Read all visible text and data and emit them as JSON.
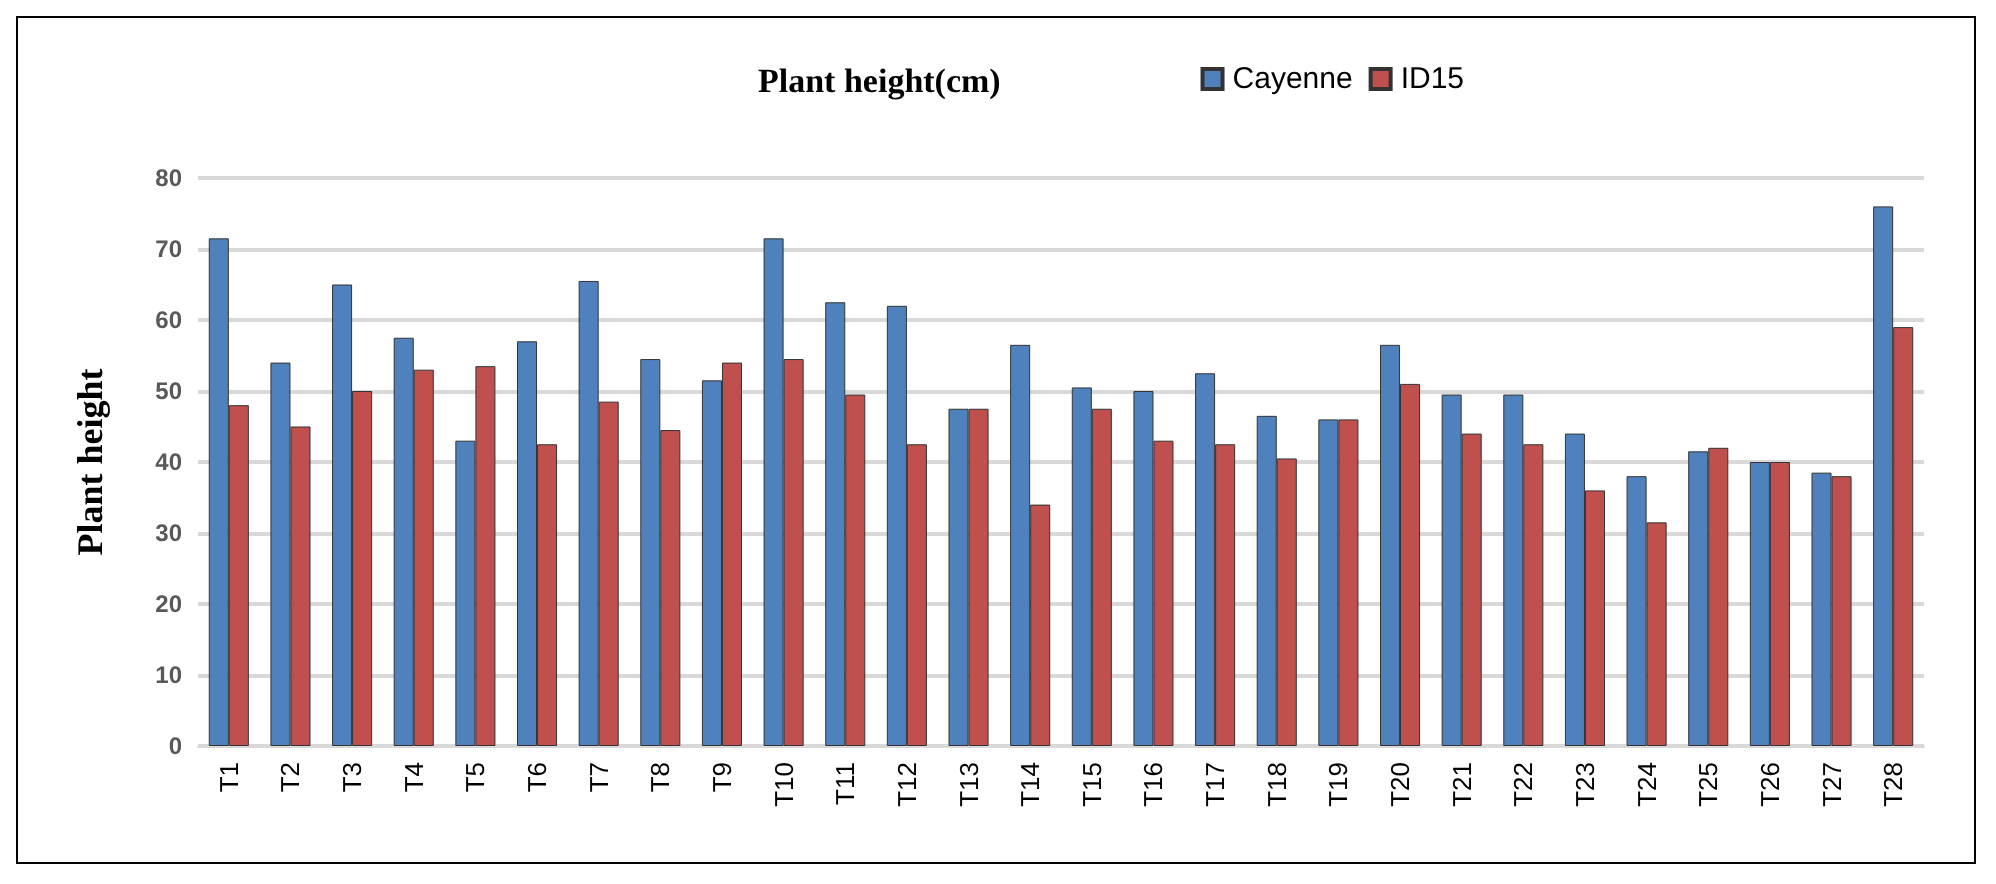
{
  "chart_data": {
    "type": "bar",
    "title": "Plant height(cm)",
    "ylabel": "Plant height",
    "categories": [
      "T1",
      "T2",
      "T3",
      "T4",
      "T5",
      "T6",
      "T7",
      "T8",
      "T9",
      "T10",
      "T11",
      "T12",
      "T13",
      "T14",
      "T15",
      "T16",
      "T17",
      "T18",
      "T19",
      "T20",
      "T21",
      "T22",
      "T23",
      "T24",
      "T25",
      "T26",
      "T27",
      "T28"
    ],
    "series": [
      {
        "name": "Cayenne",
        "color": "#4f81bd",
        "values": [
          71.5,
          54,
          65,
          57.5,
          43,
          57,
          65.5,
          54.5,
          51.5,
          71.5,
          62.5,
          62,
          47.5,
          56.5,
          50.5,
          50,
          52.5,
          46.5,
          46,
          56.5,
          49.5,
          49.5,
          44,
          38,
          41.5,
          40,
          38.5,
          76
        ]
      },
      {
        "name": "ID15",
        "color": "#c0504d",
        "values": [
          48,
          45,
          50,
          53,
          53.5,
          42.5,
          48.5,
          44.5,
          54,
          54.5,
          49.5,
          42.5,
          47.5,
          34,
          47.5,
          43,
          42.5,
          40.5,
          46,
          51,
          44,
          42.5,
          36,
          31.5,
          42,
          40,
          38,
          59
        ]
      }
    ],
    "ylim": [
      0,
      80
    ],
    "yticks": [
      0,
      10,
      20,
      30,
      40,
      50,
      60,
      70,
      80
    ],
    "grid": "y",
    "legend": "top right"
  }
}
